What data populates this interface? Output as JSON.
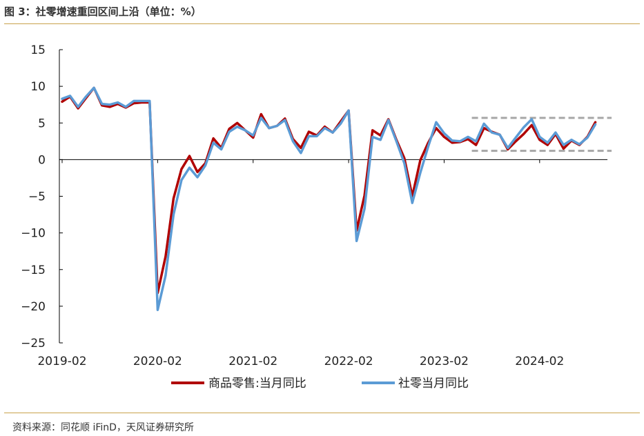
{
  "header": {
    "title": "图 3：社零增速重回区间上沿（单位：%）"
  },
  "footer": {
    "source": "资料来源：同花顺 iFinD，天风证券研究所"
  },
  "colors": {
    "rule": "#c8a24a",
    "series_retail_goods": "#b00000",
    "series_total_retail": "#5b9bd5",
    "band": "#a6a6a6"
  },
  "chart_data": {
    "type": "line",
    "xlabel": "",
    "ylabel": "",
    "ylim": [
      -25,
      15
    ],
    "y_ticks": [
      15,
      10,
      5,
      0,
      -5,
      -10,
      -15,
      -20,
      -25
    ],
    "y_tick_labels": [
      "15",
      "10",
      "5",
      "0",
      "−5",
      "−10",
      "−15",
      "−20",
      "−25"
    ],
    "x_tick_labels": [
      "2019-02",
      "2020-02",
      "2021-02",
      "2022-02",
      "2023-02",
      "2024-02"
    ],
    "x_tick_months": [
      "2019-02",
      "2020-02",
      "2021-02",
      "2022-02",
      "2023-02",
      "2024-02"
    ],
    "x": [
      "2019-02",
      "2019-03",
      "2019-04",
      "2019-05",
      "2019-06",
      "2019-07",
      "2019-08",
      "2019-09",
      "2019-10",
      "2019-11",
      "2019-12",
      "2020-01",
      "2020-02",
      "2020-03",
      "2020-04",
      "2020-05",
      "2020-06",
      "2020-07",
      "2020-08",
      "2020-09",
      "2020-10",
      "2020-11",
      "2020-12",
      "2021-01",
      "2021-02",
      "2021-03",
      "2021-04",
      "2021-05",
      "2021-06",
      "2021-07",
      "2021-08",
      "2021-09",
      "2021-10",
      "2021-11",
      "2021-12",
      "2022-01",
      "2022-02",
      "2022-03",
      "2022-04",
      "2022-05",
      "2022-06",
      "2022-07",
      "2022-08",
      "2022-09",
      "2022-10",
      "2022-11",
      "2022-12",
      "2023-01",
      "2023-02",
      "2023-03",
      "2023-04",
      "2023-05",
      "2023-06",
      "2023-07",
      "2023-08",
      "2023-09",
      "2023-10",
      "2023-11",
      "2023-12",
      "2024-01",
      "2024-02",
      "2024-03",
      "2024-04",
      "2024-05",
      "2024-06",
      "2024-07",
      "2024-08",
      "2024-09",
      "2024-10"
    ],
    "series": [
      {
        "name": "商品零售:当月同比",
        "color": "#b00000",
        "values": [
          7.9,
          8.6,
          7.0,
          8.4,
          9.8,
          7.4,
          7.2,
          7.6,
          7.1,
          7.7,
          7.8,
          7.8,
          -18.2,
          -13.2,
          -5.3,
          -1.3,
          0.5,
          -1.7,
          -0.5,
          2.9,
          1.6,
          4.2,
          5.0,
          4.0,
          3.0,
          6.2,
          4.3,
          4.6,
          5.6,
          2.8,
          1.6,
          3.8,
          3.3,
          4.5,
          3.7,
          5.2,
          6.7,
          -9.7,
          -4.9,
          4.0,
          3.3,
          5.5,
          2.7,
          0.2,
          -5.0,
          -0.1,
          2.3,
          4.3,
          3.1,
          2.3,
          2.4,
          2.8,
          2.0,
          4.3,
          3.8,
          3.4,
          1.4,
          2.5,
          3.5,
          4.7,
          2.7,
          2.0,
          3.5,
          1.5,
          2.6,
          2.0,
          3.1,
          5.1,
          null
        ]
      },
      {
        "name": "社零当月同比",
        "color": "#5b9bd5",
        "values": [
          8.3,
          8.7,
          7.2,
          8.6,
          9.8,
          7.6,
          7.5,
          7.8,
          7.2,
          8.0,
          8.0,
          8.0,
          -20.5,
          -15.8,
          -7.5,
          -2.8,
          -1.1,
          -2.4,
          -0.8,
          2.3,
          1.4,
          3.8,
          4.5,
          4.0,
          3.3,
          5.7,
          4.3,
          4.6,
          5.4,
          2.5,
          0.9,
          3.2,
          3.2,
          4.3,
          3.7,
          4.9,
          6.7,
          -11.1,
          -6.7,
          3.1,
          2.7,
          5.4,
          2.5,
          -0.5,
          -5.9,
          -1.8,
          1.8,
          5.1,
          3.6,
          2.6,
          2.5,
          3.1,
          2.5,
          4.9,
          3.7,
          3.4,
          1.6,
          3.0,
          4.4,
          5.5,
          3.1,
          2.3,
          3.7,
          2.0,
          2.7,
          2.1,
          3.0,
          4.8,
          null
        ]
      }
    ],
    "reference_band": {
      "upper": 5.7,
      "lower": 1.2,
      "from": "2023-06",
      "to": "2024-10"
    },
    "grid": false,
    "legend_position": "bottom"
  }
}
